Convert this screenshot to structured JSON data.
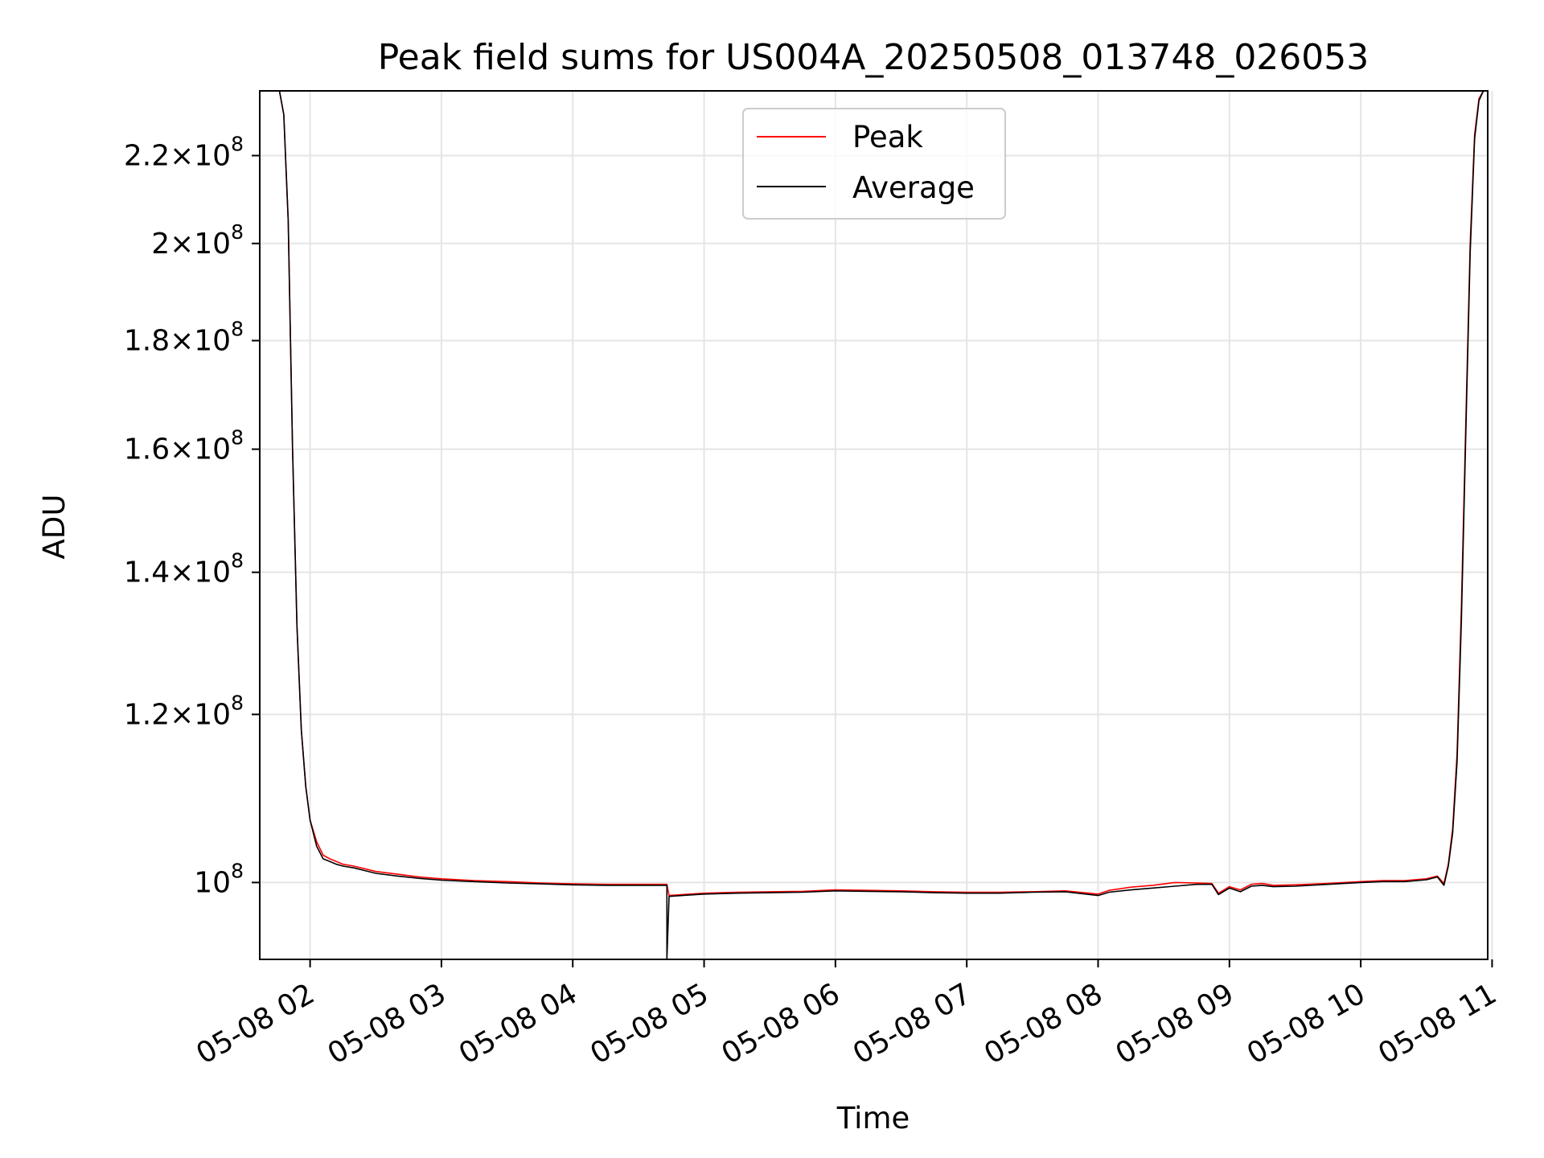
{
  "chart_data": {
    "type": "line",
    "title": "Peak field sums for US004A_20250508_013748_026053",
    "xlabel": "Time",
    "ylabel": "ADU",
    "y_scale": "log",
    "grid": true,
    "legend_placement": "upper center",
    "xlim": [
      "05-08 01:37",
      "05-08 10:58"
    ],
    "ylim": [
      92000000,
      236000000
    ],
    "x_ticks": [
      "05-08 02",
      "05-08 03",
      "05-08 04",
      "05-08 05",
      "05-08 06",
      "05-08 07",
      "05-08 08",
      "05-08 09",
      "05-08 10",
      "05-08 11"
    ],
    "y_ticks": [
      {
        "value": 100000000,
        "mantissa": "",
        "exp": "8"
      },
      {
        "value": 120000000,
        "mantissa": "1.2",
        "exp": "8"
      },
      {
        "value": 140000000,
        "mantissa": "1.4",
        "exp": "8"
      },
      {
        "value": 160000000,
        "mantissa": "1.6",
        "exp": "8"
      },
      {
        "value": 180000000,
        "mantissa": "1.8",
        "exp": "8"
      },
      {
        "value": 200000000,
        "mantissa": "2",
        "exp": "8"
      },
      {
        "value": 220000000,
        "mantissa": "2.2",
        "exp": "8"
      }
    ],
    "series": [
      {
        "name": "Peak",
        "color": "#ff0000",
        "x": [
          "05-08 01:38",
          "05-08 01:42",
          "05-08 01:46",
          "05-08 01:48",
          "05-08 01:50",
          "05-08 01:52",
          "05-08 01:54",
          "05-08 01:56",
          "05-08 01:58",
          "05-08 02:00",
          "05-08 02:03",
          "05-08 02:06",
          "05-08 02:09",
          "05-08 02:12",
          "05-08 02:15",
          "05-08 02:20",
          "05-08 02:25",
          "05-08 02:30",
          "05-08 02:40",
          "05-08 02:50",
          "05-08 03:00",
          "05-08 03:15",
          "05-08 03:30",
          "05-08 03:45",
          "05-08 04:00",
          "05-08 04:15",
          "05-08 04:30",
          "05-08 04:40",
          "05-08 04:43",
          "05-08 04:44",
          "05-08 04:50",
          "05-08 05:00",
          "05-08 05:15",
          "05-08 05:30",
          "05-08 05:45",
          "05-08 06:00",
          "05-08 06:15",
          "05-08 06:30",
          "05-08 06:45",
          "05-08 07:00",
          "05-08 07:15",
          "05-08 07:30",
          "05-08 07:45",
          "05-08 08:00",
          "05-08 08:05",
          "05-08 08:15",
          "05-08 08:25",
          "05-08 08:35",
          "05-08 08:45",
          "05-08 08:52",
          "05-08 08:55",
          "05-08 09:00",
          "05-08 09:05",
          "05-08 09:10",
          "05-08 09:15",
          "05-08 09:20",
          "05-08 09:30",
          "05-08 09:45",
          "05-08 10:00",
          "05-08 10:10",
          "05-08 10:20",
          "05-08 10:30",
          "05-08 10:35",
          "05-08 10:38",
          "05-08 10:40",
          "05-08 10:42",
          "05-08 10:44",
          "05-08 10:46",
          "05-08 10:48",
          "05-08 10:50",
          "05-08 10:52",
          "05-08 10:54",
          "05-08 10:56",
          "05-08 10:58"
        ],
        "y": [
          236000000,
          236000000,
          236000000,
          230000000,
          205000000,
          160000000,
          132000000,
          118000000,
          111000000,
          107000000,
          104500000,
          103000000,
          102600000,
          102300000,
          102000000,
          101800000,
          101500000,
          101200000,
          100900000,
          100600000,
          100400000,
          100200000,
          100100000,
          99950000,
          99850000,
          99800000,
          99800000,
          99800000,
          99800000,
          98600000,
          98700000,
          98850000,
          98950000,
          99000000,
          99050000,
          99200000,
          99150000,
          99100000,
          99000000,
          98950000,
          98950000,
          99000000,
          99100000,
          98750000,
          99150000,
          99500000,
          99700000,
          100000000,
          99950000,
          99900000,
          98850000,
          99550000,
          99200000,
          99800000,
          99900000,
          99700000,
          99750000,
          99900000,
          100100000,
          100200000,
          100200000,
          100400000,
          100700000,
          99900000,
          102000000,
          106000000,
          115000000,
          135000000,
          165000000,
          200000000,
          225000000,
          234000000,
          236000000,
          236000000
        ]
      },
      {
        "name": "Average",
        "color": "#000000",
        "x": [
          "05-08 01:38",
          "05-08 01:42",
          "05-08 01:46",
          "05-08 01:48",
          "05-08 01:50",
          "05-08 01:52",
          "05-08 01:54",
          "05-08 01:56",
          "05-08 01:58",
          "05-08 02:00",
          "05-08 02:03",
          "05-08 02:06",
          "05-08 02:09",
          "05-08 02:12",
          "05-08 02:15",
          "05-08 02:20",
          "05-08 02:25",
          "05-08 02:30",
          "05-08 02:40",
          "05-08 02:50",
          "05-08 03:00",
          "05-08 03:15",
          "05-08 03:30",
          "05-08 03:45",
          "05-08 04:00",
          "05-08 04:15",
          "05-08 04:30",
          "05-08 04:40",
          "05-08 04:43",
          "05-08 04:43",
          "05-08 04:44",
          "05-08 04:50",
          "05-08 05:00",
          "05-08 05:15",
          "05-08 05:30",
          "05-08 05:45",
          "05-08 06:00",
          "05-08 06:15",
          "05-08 06:30",
          "05-08 06:45",
          "05-08 07:00",
          "05-08 07:15",
          "05-08 07:30",
          "05-08 07:45",
          "05-08 08:00",
          "05-08 08:05",
          "05-08 08:15",
          "05-08 08:25",
          "05-08 08:35",
          "05-08 08:45",
          "05-08 08:52",
          "05-08 08:55",
          "05-08 09:00",
          "05-08 09:05",
          "05-08 09:10",
          "05-08 09:15",
          "05-08 09:20",
          "05-08 09:30",
          "05-08 09:45",
          "05-08 10:00",
          "05-08 10:10",
          "05-08 10:20",
          "05-08 10:30",
          "05-08 10:35",
          "05-08 10:38",
          "05-08 10:40",
          "05-08 10:42",
          "05-08 10:44",
          "05-08 10:46",
          "05-08 10:48",
          "05-08 10:50",
          "05-08 10:52",
          "05-08 10:54",
          "05-08 10:56",
          "05-08 10:58"
        ],
        "y": [
          236000000,
          236000000,
          236000000,
          230000000,
          205000000,
          160000000,
          132000000,
          118000000,
          111000000,
          107000000,
          104000000,
          102600000,
          102300000,
          102000000,
          101800000,
          101600000,
          101300000,
          101000000,
          100700000,
          100450000,
          100250000,
          100100000,
          99950000,
          99850000,
          99750000,
          99700000,
          99700000,
          99700000,
          99700000,
          92000000,
          98500000,
          98600000,
          98750000,
          98850000,
          98900000,
          98950000,
          99100000,
          99050000,
          99000000,
          98900000,
          98850000,
          98850000,
          98950000,
          99000000,
          98600000,
          98950000,
          99200000,
          99400000,
          99600000,
          99800000,
          99800000,
          98700000,
          99400000,
          99000000,
          99600000,
          99700000,
          99550000,
          99600000,
          99800000,
          100000000,
          100100000,
          100100000,
          100300000,
          100600000,
          99700000,
          101800000,
          105500000,
          114000000,
          133000000,
          163000000,
          198000000,
          224000000,
          233500000,
          236000000,
          236000000
        ]
      }
    ]
  }
}
